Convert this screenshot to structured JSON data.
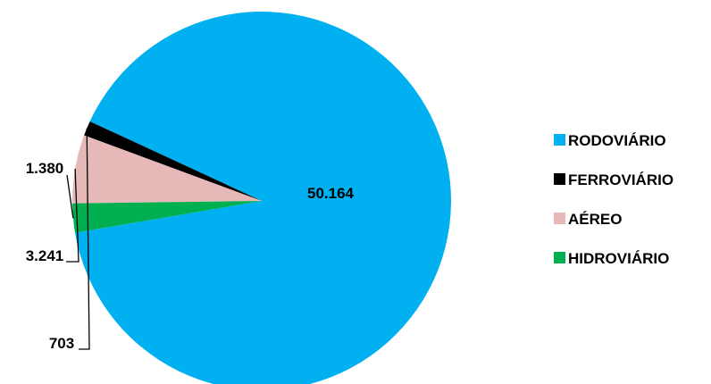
{
  "chart_data": {
    "type": "pie",
    "title": "",
    "categories": [
      "RODOVIÁRIO",
      "FERROVIÁRIO",
      "AÉREO",
      "HIDROVIÁRIO"
    ],
    "values": [
      50164,
      703,
      3241,
      1380
    ],
    "value_labels": [
      "50.164",
      "703",
      "3.241",
      "1.380"
    ],
    "colors": [
      "#00b0f0",
      "#000000",
      "#e6b9b8",
      "#00b050"
    ],
    "legend": {
      "position": "right",
      "entries": [
        "RODOVIÁRIO",
        "FERROVIÁRIO",
        "AÉREO",
        "HIDROVIÁRIO"
      ]
    }
  }
}
